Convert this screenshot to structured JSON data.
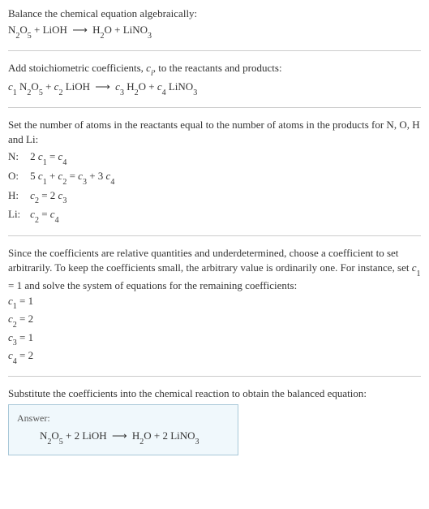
{
  "intro": {
    "line1": "Balance the chemical equation algebraically:",
    "eq_n2o5": "N",
    "eq_2": "2",
    "eq_o": "O",
    "eq_5": "5",
    "plus1": " + LiOH ",
    "arrow": "⟶",
    "h2o": " H",
    "h2o_2": "2",
    "o_plus": "O + LiNO",
    "lino3_3": "3"
  },
  "step1": {
    "text": "Add stoichiometric coefficients, ",
    "ci": "c",
    "ci_i": "i",
    "text2": ", to the reactants and products:",
    "c1": "c",
    "c1_1": "1",
    "sp1": " N",
    "n_2": "2",
    "o": "O",
    "o_5": "5",
    "plus": " + ",
    "c2": "c",
    "c2_2": "2",
    "lioh": " LiOH ",
    "arrow": "⟶",
    "sp2": " ",
    "c3": "c",
    "c3_3": "3",
    "h2o": " H",
    "h2o_2": "2",
    "o2": "O + ",
    "c4": "c",
    "c4_4": "4",
    "lino3": " LiNO",
    "lino3_3": "3"
  },
  "step2": {
    "text1": "Set the number of atoms in the reactants equal to the number of atoms in the products for N, O, H and Li:",
    "rows": [
      {
        "el": "N:",
        "lhs_a": "2 ",
        "c": "c",
        "s": "1",
        "eq": " = ",
        "c2": "c",
        "s2": "4",
        "tail": ""
      },
      {
        "el": "O:",
        "lhs_a": "5 ",
        "c": "c",
        "s": "1",
        "eq": " + ",
        "c2": "c",
        "s2": "2",
        "tail_eq": " = ",
        "c3": "c",
        "s3": "3",
        "plus": " + 3 ",
        "c4": "c",
        "s4": "4"
      },
      {
        "el": "H:",
        "lhs_a": "",
        "c": "c",
        "s": "2",
        "eq": " = 2 ",
        "c2": "c",
        "s2": "3",
        "tail": ""
      },
      {
        "el": "Li:",
        "lhs_a": "",
        "c": "c",
        "s": "2",
        "eq": " = ",
        "c2": "c",
        "s2": "4",
        "tail": ""
      }
    ]
  },
  "step3": {
    "text": "Since the coefficients are relative quantities and underdetermined, choose a coefficient to set arbitrarily. To keep the coefficients small, the arbitrary value is ordinarily one. For instance, set ",
    "c1": "c",
    "c1_1": "1",
    "text2": " = 1 and solve the system of equations for the remaining coefficients:",
    "coefs": [
      {
        "c": "c",
        "i": "1",
        "v": " = 1"
      },
      {
        "c": "c",
        "i": "2",
        "v": " = 2"
      },
      {
        "c": "c",
        "i": "3",
        "v": " = 1"
      },
      {
        "c": "c",
        "i": "4",
        "v": " = 2"
      }
    ]
  },
  "step4": {
    "text": "Substitute the coefficients into the chemical reaction to obtain the balanced equation:"
  },
  "answer": {
    "label": "Answer:",
    "n2o5_n": "N",
    "n2o5_2": "2",
    "n2o5_o": "O",
    "n2o5_5": "5",
    "plus1": " + 2 LiOH ",
    "arrow": "⟶",
    "h2o": " H",
    "h2o_2": "2",
    "tail": "O + 2 LiNO",
    "lino3_3": "3"
  },
  "colors": {
    "text": "#333333",
    "rule": "#cccccc",
    "answer_border": "#a8c8d8",
    "answer_bg": "#f0f8fc"
  }
}
